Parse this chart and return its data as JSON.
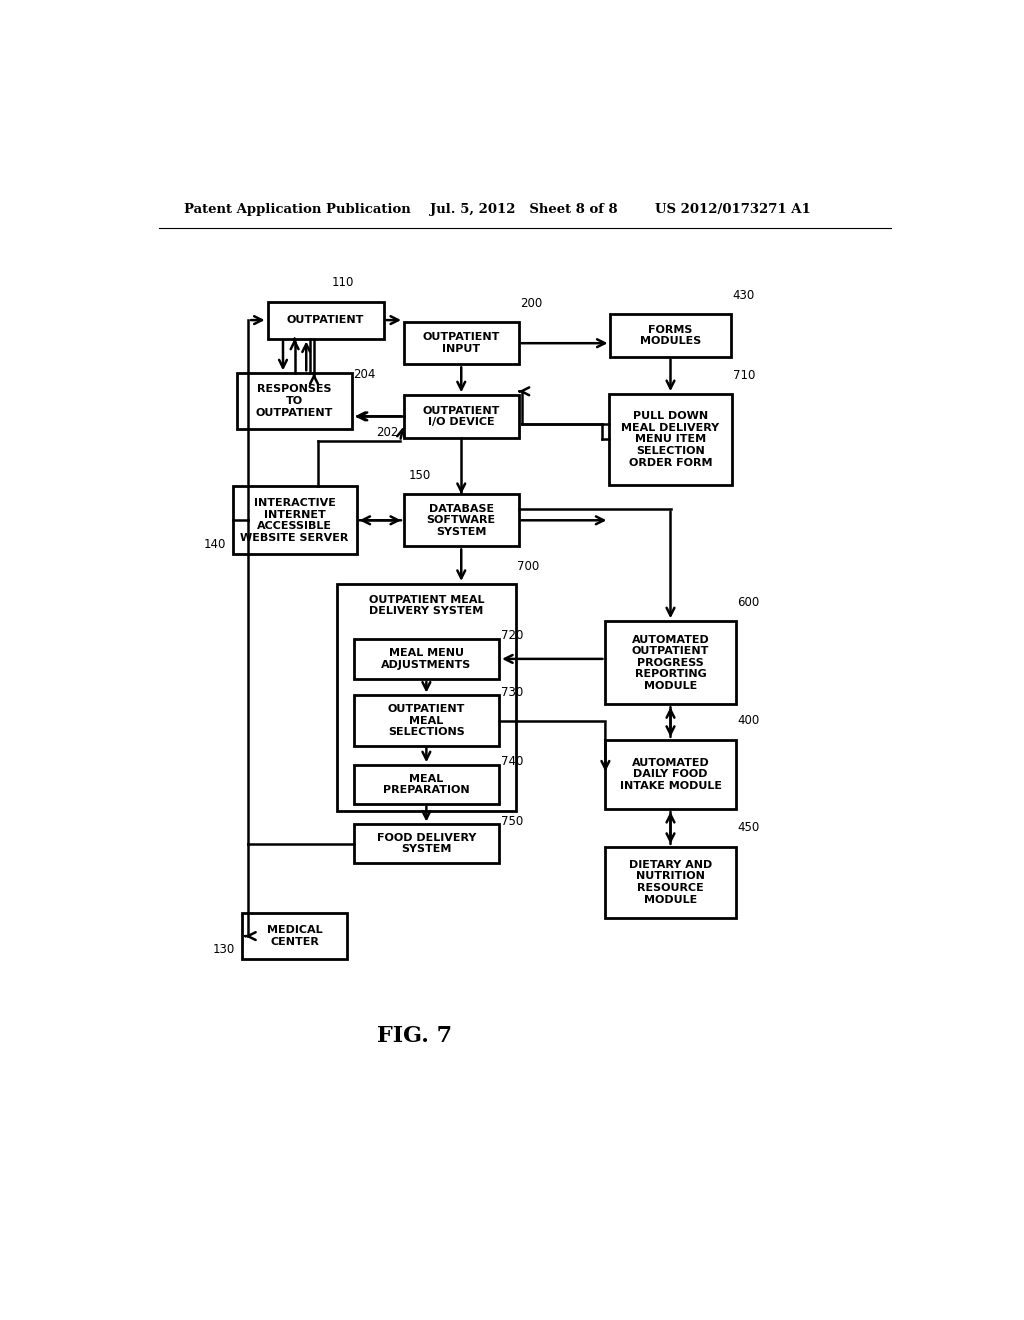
{
  "header_left": "Patent Application Publication",
  "header_mid": "Jul. 5, 2012   Sheet 8 of 8",
  "header_right": "US 2012/0173271 A1",
  "fig_label": "FIG. 7",
  "background": "#ffffff"
}
